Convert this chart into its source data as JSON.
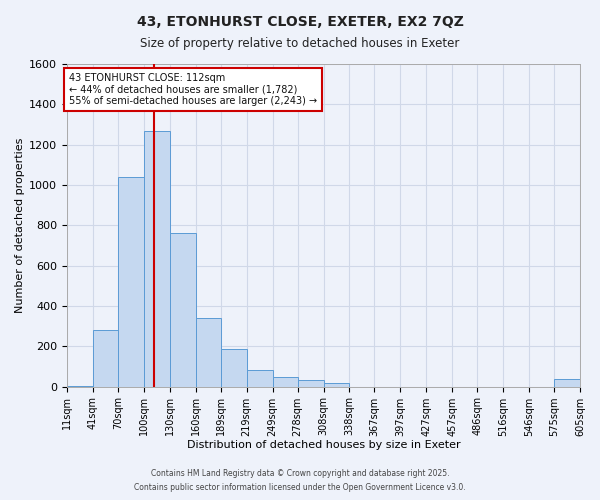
{
  "title": "43, ETONHURST CLOSE, EXETER, EX2 7QZ",
  "subtitle": "Size of property relative to detached houses in Exeter",
  "xlabel": "Distribution of detached houses by size in Exeter",
  "ylabel": "Number of detached properties",
  "bar_left_edges": [
    11,
    41,
    70,
    100,
    130,
    160,
    189,
    219,
    249,
    278,
    308,
    338,
    367,
    397,
    427,
    457,
    486,
    516,
    546,
    575
  ],
  "bar_widths": [
    30,
    29,
    30,
    30,
    30,
    29,
    30,
    30,
    29,
    30,
    30,
    29,
    30,
    30,
    30,
    29,
    30,
    30,
    29,
    30
  ],
  "bar_heights": [
    5,
    280,
    1040,
    1270,
    760,
    340,
    185,
    80,
    50,
    35,
    20,
    0,
    0,
    0,
    0,
    0,
    0,
    0,
    0,
    40
  ],
  "bar_color": "#c5d8f0",
  "bar_edge_color": "#5b9bd5",
  "vline_x": 112,
  "vline_color": "#cc0000",
  "ylim": [
    0,
    1600
  ],
  "yticks": [
    0,
    200,
    400,
    600,
    800,
    1000,
    1200,
    1400,
    1600
  ],
  "xtick_labels": [
    "11sqm",
    "41sqm",
    "70sqm",
    "100sqm",
    "130sqm",
    "160sqm",
    "189sqm",
    "219sqm",
    "249sqm",
    "278sqm",
    "308sqm",
    "338sqm",
    "367sqm",
    "397sqm",
    "427sqm",
    "457sqm",
    "486sqm",
    "516sqm",
    "546sqm",
    "575sqm",
    "605sqm"
  ],
  "annotation_title": "43 ETONHURST CLOSE: 112sqm",
  "annotation_line1": "← 44% of detached houses are smaller (1,782)",
  "annotation_line2": "55% of semi-detached houses are larger (2,243) →",
  "annotation_box_color": "#ffffff",
  "annotation_border_color": "#cc0000",
  "grid_color": "#d0d8e8",
  "background_color": "#eef2fa",
  "footer1": "Contains HM Land Registry data © Crown copyright and database right 2025.",
  "footer2": "Contains public sector information licensed under the Open Government Licence v3.0."
}
